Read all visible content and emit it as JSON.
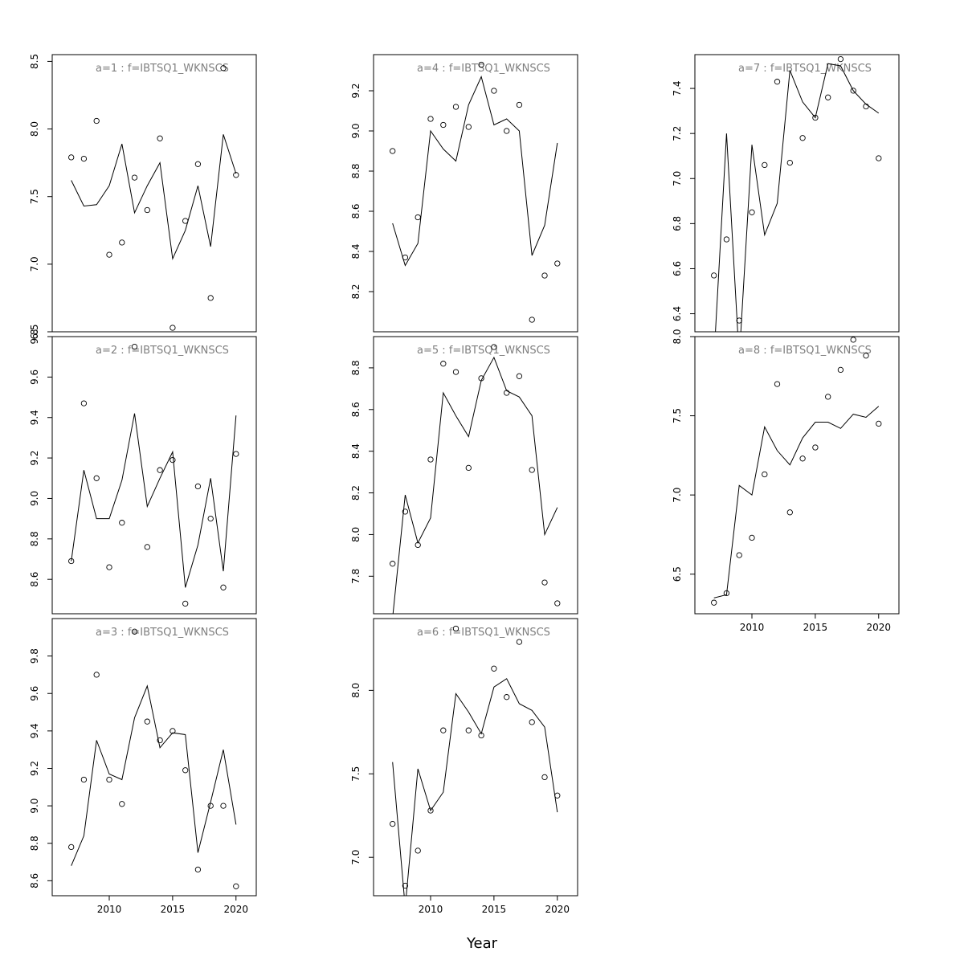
{
  "chart_data": {
    "type": "line",
    "layout": "3x3 panel grid, column-major; shared x axis per column",
    "xlabel": "Year",
    "xticks": [
      2010,
      2015,
      2020
    ],
    "legend": "none",
    "grid": false,
    "panels": [
      {
        "label": "a=1 : f=IBTSQ1_WKNSCS",
        "ylim": [
          6.5,
          8.55
        ],
        "yticks": [
          "6.5",
          "7.0",
          "7.5",
          "8.0",
          "8.5"
        ],
        "x": [
          2007,
          2008,
          2009,
          2010,
          2011,
          2012,
          2013,
          2014,
          2015,
          2016,
          2017,
          2018,
          2019,
          2020
        ],
        "series": [
          {
            "kind": "fitted-line",
            "values": [
              7.62,
              7.43,
              7.44,
              7.58,
              7.89,
              7.38,
              7.58,
              7.75,
              7.04,
              7.25,
              7.58,
              7.13,
              7.96,
              7.67
            ]
          },
          {
            "kind": "observed-points",
            "values": [
              7.79,
              7.78,
              8.06,
              7.07,
              7.16,
              7.64,
              7.4,
              7.93,
              6.53,
              7.32,
              7.74,
              6.75,
              8.45,
              7.66
            ]
          }
        ]
      },
      {
        "label": "a=2 : f=IBTSQ1_WKNSCS",
        "ylim": [
          8.43,
          9.8
        ],
        "yticks": [
          "8.6",
          "8.8",
          "9.0",
          "9.2",
          "9.4",
          "9.6",
          "9.8"
        ],
        "x": [
          2007,
          2008,
          2009,
          2010,
          2011,
          2012,
          2013,
          2014,
          2015,
          2016,
          2017,
          2018,
          2019,
          2020
        ],
        "series": [
          {
            "kind": "fitted-line",
            "values": [
              8.69,
              9.14,
              8.9,
              8.9,
              9.09,
              9.42,
              8.96,
              9.1,
              9.23,
              8.56,
              8.77,
              9.1,
              8.64,
              9.41
            ]
          },
          {
            "kind": "observed-points",
            "values": [
              8.69,
              9.47,
              9.1,
              8.66,
              8.88,
              9.75,
              8.76,
              9.14,
              9.19,
              8.48,
              9.06,
              8.9,
              8.56,
              9.22
            ]
          }
        ]
      },
      {
        "label": "a=3 : f=IBTSQ1_WKNSCS",
        "ylim": [
          8.52,
          10.0
        ],
        "yticks": [
          "8.6",
          "8.8",
          "9.0",
          "9.2",
          "9.4",
          "9.6",
          "9.8"
        ],
        "x": [
          2007,
          2008,
          2009,
          2010,
          2011,
          2012,
          2013,
          2014,
          2015,
          2016,
          2017,
          2018,
          2019,
          2020
        ],
        "series": [
          {
            "kind": "fitted-line",
            "values": [
              8.68,
              8.84,
              9.35,
              9.17,
              9.14,
              9.47,
              9.64,
              9.31,
              9.39,
              9.38,
              8.75,
              9.02,
              9.3,
              8.9
            ]
          },
          {
            "kind": "observed-points",
            "values": [
              8.78,
              9.14,
              9.7,
              9.14,
              9.01,
              9.93,
              9.45,
              9.35,
              9.4,
              9.19,
              8.66,
              9.0,
              9.0,
              8.57
            ]
          }
        ]
      },
      {
        "label": "a=4 : f=IBTSQ1_WKNSCS",
        "ylim": [
          8.0,
          9.38
        ],
        "yticks": [
          "8.2",
          "8.4",
          "8.6",
          "8.8",
          "9.0",
          "9.2"
        ],
        "x": [
          2007,
          2008,
          2009,
          2010,
          2011,
          2012,
          2013,
          2014,
          2015,
          2016,
          2017,
          2018,
          2019,
          2020
        ],
        "series": [
          {
            "kind": "fitted-line",
            "values": [
              8.54,
              8.33,
              8.44,
              9.0,
              8.91,
              8.85,
              9.13,
              9.27,
              9.03,
              9.06,
              9.0,
              8.38,
              8.53,
              8.94
            ]
          },
          {
            "kind": "observed-points",
            "values": [
              8.9,
              8.37,
              8.57,
              9.06,
              9.03,
              9.12,
              9.02,
              9.33,
              9.2,
              9.0,
              9.13,
              8.06,
              8.28,
              8.34
            ]
          }
        ]
      },
      {
        "label": "a=5 : f=IBTSQ1_WKNSCS",
        "ylim": [
          7.62,
          8.95
        ],
        "yticks": [
          "7.8",
          "8.0",
          "8.2",
          "8.4",
          "8.6",
          "8.8"
        ],
        "x": [
          2007,
          2008,
          2009,
          2010,
          2011,
          2012,
          2013,
          2014,
          2015,
          2016,
          2017,
          2018,
          2019,
          2020
        ],
        "series": [
          {
            "kind": "fitted-line",
            "values": [
              7.6,
              8.19,
              7.96,
              8.08,
              8.68,
              8.57,
              8.47,
              8.74,
              8.85,
              8.69,
              8.66,
              8.57,
              8.0,
              8.13
            ]
          },
          {
            "kind": "observed-points",
            "values": [
              7.86,
              8.11,
              7.95,
              8.36,
              8.82,
              8.78,
              8.32,
              8.75,
              8.9,
              8.68,
              8.76,
              8.31,
              7.77,
              7.67
            ]
          }
        ]
      },
      {
        "label": "a=6 : f=IBTSQ1_WKNSCS",
        "ylim": [
          6.77,
          8.43
        ],
        "yticks": [
          "7.0",
          "7.5",
          "8.0"
        ],
        "x": [
          2007,
          2008,
          2009,
          2010,
          2011,
          2012,
          2013,
          2014,
          2015,
          2016,
          2017,
          2018,
          2019,
          2020
        ],
        "series": [
          {
            "kind": "fitted-line",
            "values": [
              7.57,
              6.7,
              7.53,
              7.28,
              7.39,
              7.98,
              7.87,
              7.74,
              8.02,
              8.07,
              7.92,
              7.88,
              7.78,
              7.27
            ]
          },
          {
            "kind": "observed-points",
            "values": [
              7.2,
              6.83,
              7.04,
              7.28,
              7.76,
              8.37,
              7.76,
              7.73,
              8.13,
              7.96,
              8.29,
              7.81,
              7.48,
              7.37
            ]
          }
        ]
      },
      {
        "label": "a=7 : f=IBTSQ1_WKNSCS",
        "ylim": [
          6.32,
          7.55
        ],
        "yticks": [
          "6.4",
          "6.6",
          "6.8",
          "7.0",
          "7.2",
          "7.4"
        ],
        "x": [
          2007,
          2008,
          2009,
          2010,
          2011,
          2012,
          2013,
          2014,
          2015,
          2016,
          2017,
          2018,
          2019,
          2020
        ],
        "series": [
          {
            "kind": "fitted-line",
            "values": [
              6.2,
              7.2,
              6.2,
              7.15,
              6.75,
              6.89,
              7.48,
              7.34,
              7.27,
              7.51,
              7.5,
              7.39,
              7.33,
              7.29
            ]
          },
          {
            "kind": "observed-points",
            "values": [
              6.57,
              6.73,
              6.37,
              6.85,
              7.06,
              7.43,
              7.07,
              7.18,
              7.27,
              7.36,
              7.53,
              7.39,
              7.32,
              7.09
            ]
          }
        ]
      },
      {
        "label": "a=8 : f=IBTSQ1_WKNSCS",
        "ylim": [
          6.25,
          8.0
        ],
        "yticks": [
          "6.5",
          "7.0",
          "7.5",
          "8.0"
        ],
        "x": [
          2007,
          2008,
          2009,
          2010,
          2011,
          2012,
          2013,
          2014,
          2015,
          2016,
          2017,
          2018,
          2019,
          2020
        ],
        "series": [
          {
            "kind": "fitted-line",
            "values": [
              6.35,
              6.37,
              7.06,
              7.0,
              7.43,
              7.28,
              7.19,
              7.36,
              7.46,
              7.46,
              7.42,
              7.51,
              7.49,
              7.56
            ]
          },
          {
            "kind": "observed-points",
            "values": [
              6.32,
              6.38,
              6.62,
              6.73,
              7.13,
              7.7,
              6.89,
              7.23,
              7.3,
              7.62,
              7.79,
              7.98,
              7.88,
              7.45
            ]
          }
        ]
      }
    ]
  }
}
